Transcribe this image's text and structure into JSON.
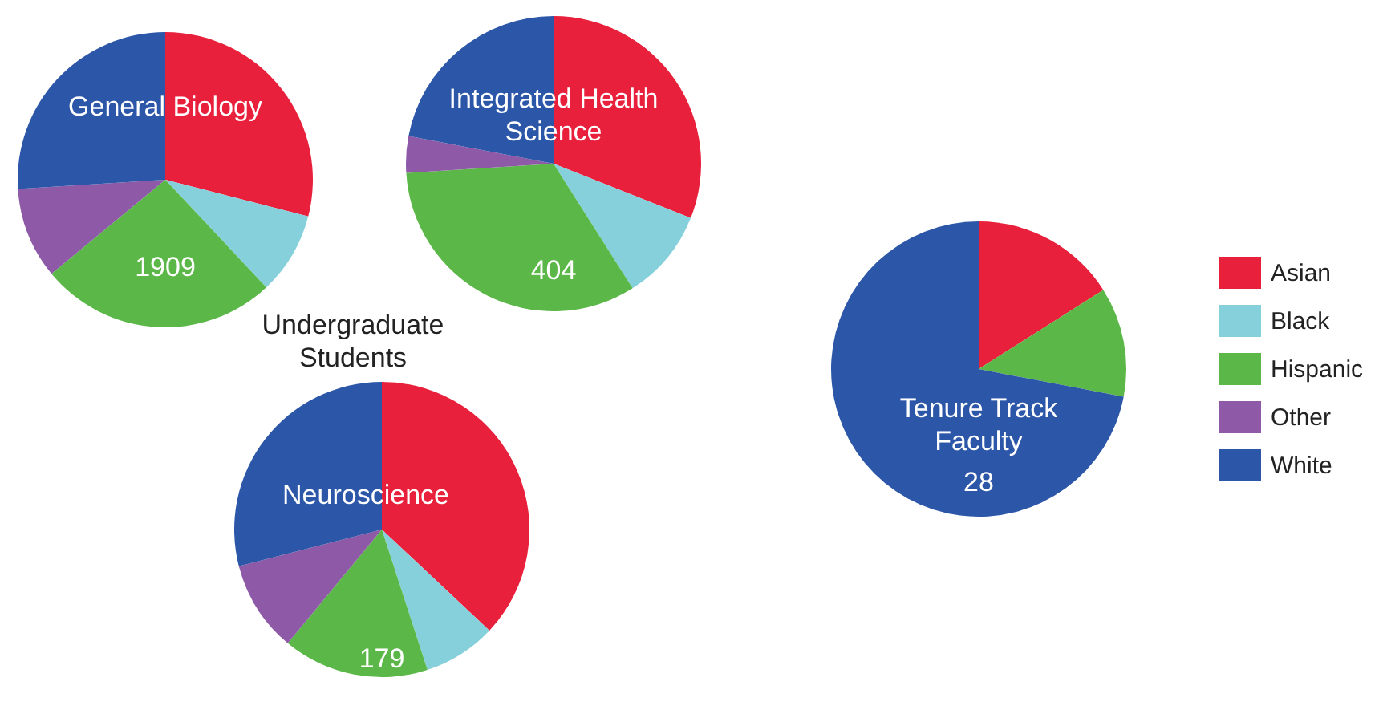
{
  "chart_data": [
    {
      "type": "pie",
      "title": "General Biology",
      "categories": [
        null,
        null,
        null,
        null,
        null
      ],
      "values": [
        29,
        9,
        26,
        10,
        26
      ],
      "colors": [
        "#e8203c",
        "#86d0dc",
        "#5bb848",
        "#8e5aa8",
        "#2c56a8"
      ],
      "annotations": [
        "1909"
      ],
      "legend": false
    },
    {
      "type": "pie",
      "title": "Integrated Health Science",
      "categories": [
        null,
        null,
        null,
        null,
        null
      ],
      "values": [
        31,
        10,
        33,
        4,
        22
      ],
      "colors": [
        "#e8203c",
        "#86d0dc",
        "#5bb848",
        "#8e5aa8",
        "#2c56a8"
      ],
      "annotations": [
        "404"
      ],
      "legend": false
    },
    {
      "type": "pie",
      "title": "Neuroscience",
      "categories": [
        null,
        null,
        null,
        null,
        null
      ],
      "values": [
        37,
        8,
        16,
        10,
        29
      ],
      "colors": [
        "#e8203c",
        "#86d0dc",
        "#5bb848",
        "#8e5aa8",
        "#2c56a8"
      ],
      "annotations": [
        "179"
      ],
      "legend": false
    },
    {
      "type": "pie",
      "title": "Tenure Track Faculty",
      "categories": [
        "Asian",
        "Black",
        "Hispanic",
        "Other",
        "White"
      ],
      "values": [
        16,
        0,
        12,
        0,
        72
      ],
      "colors": [
        "#e8203c",
        "#86d0dc",
        "#5bb848",
        "#8e5aa8",
        "#2c56a8"
      ],
      "annotations": [
        "28"
      ],
      "legend": "right"
    },
    {
      "type": "other",
      "title": "Undergraduate Students"
    }
  ]
}
